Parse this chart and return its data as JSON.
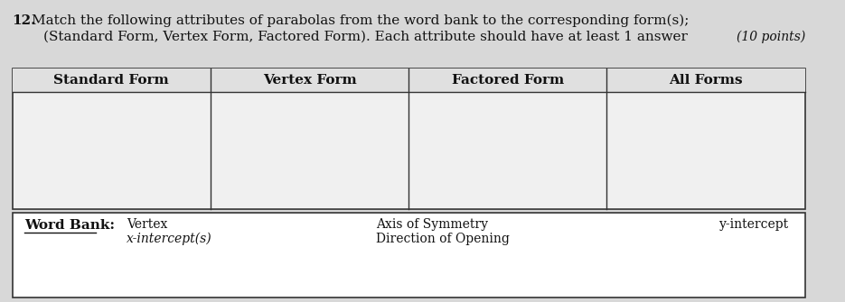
{
  "question_number": "12.",
  "question_text": "Match the following attributes of parabolas from the word bank to the corresponding form(s);",
  "question_text2": "(Standard Form, Vertex Form, Factored Form). Each attribute should have at least 1 answer",
  "points_text": "(10 points)",
  "table_headers": [
    "Standard Form",
    "Vertex Form",
    "Factored Form",
    "All Forms"
  ],
  "word_bank_label": "Word Bank:",
  "word_bank_col1": [
    "Vertex",
    "x-intercept(s)"
  ],
  "word_bank_col2": [
    "Axis of Symmetry",
    "Direction of Opening"
  ],
  "word_bank_col3": [
    "y-intercept"
  ],
  "bg_color": "#d8d8d8",
  "table_bg": "#f0f0f0",
  "word_bank_bg": "#ffffff",
  "border_color": "#333333",
  "text_color": "#111111",
  "header_fontsize": 11,
  "body_fontsize": 10,
  "question_fontsize": 11
}
